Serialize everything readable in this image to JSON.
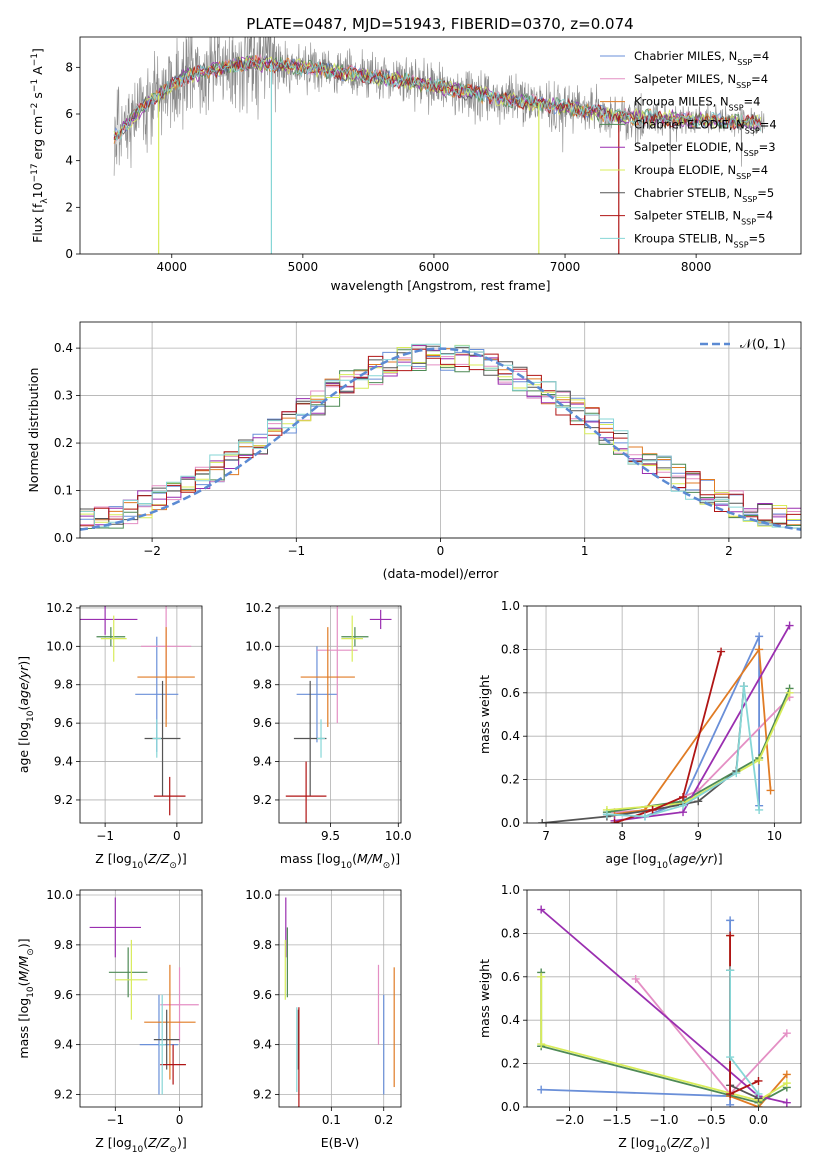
{
  "figure": {
    "title": "PLATE=0487, MJD=51943, FIBERID=0370, z=0.074"
  },
  "colors": {
    "Chabrier MILES": "#6a8fd8",
    "Salpeter MILES": "#e48fc4",
    "Kroupa MILES": "#e07b24",
    "Chabrier ELODIE": "#4e8a55",
    "Salpeter ELODIE": "#9a2fb0",
    "Kroupa ELODIE": "#d8ec5a",
    "Chabrier STELIB": "#555555",
    "Salpeter STELIB": "#b01515",
    "Kroupa STELIB": "#86d6d6",
    "data": "#888888",
    "normal": "#5b8ad3"
  },
  "legend": {
    "spectrum": [
      {
        "key": "Chabrier MILES",
        "label": "Chabrier MILES, N",
        "sub": "SSP",
        "tail": "=4"
      },
      {
        "key": "Salpeter MILES",
        "label": "Salpeter MILES, N",
        "sub": "SSP",
        "tail": "=4"
      },
      {
        "key": "Kroupa MILES",
        "label": "Kroupa MILES, N",
        "sub": "SSP",
        "tail": "=4"
      },
      {
        "key": "Chabrier ELODIE",
        "label": "Chabrier ELODIE, N",
        "sub": "SSP",
        "tail": "=4"
      },
      {
        "key": "Salpeter ELODIE",
        "label": "Salpeter ELODIE, N",
        "sub": "SSP",
        "tail": "=3"
      },
      {
        "key": "Kroupa ELODIE",
        "label": "Kroupa ELODIE, N",
        "sub": "SSP",
        "tail": "=4"
      },
      {
        "key": "Chabrier STELIB",
        "label": "Chabrier STELIB, N",
        "sub": "SSP",
        "tail": "=5"
      },
      {
        "key": "Salpeter STELIB",
        "label": "Salpeter STELIB, N",
        "sub": "SSP",
        "tail": "=4"
      },
      {
        "key": "Kroupa STELIB",
        "label": "Kroupa STELIB, N",
        "sub": "SSP",
        "tail": "=5"
      }
    ],
    "normal": "𝒩(0, 1)"
  },
  "chart_data": [
    {
      "id": "spectrum",
      "type": "line",
      "xlabel": "wavelength [Angstrom, rest frame]",
      "ylabel": "Flux [f",
      "ylabel_parts": [
        "Flux [f",
        "λ",
        "10",
        "−17",
        " erg cm",
        "−2",
        " s",
        "−1",
        " A",
        "−1",
        "]"
      ],
      "xlim": [
        3300,
        8800
      ],
      "ylim": [
        0,
        9.3
      ],
      "xticks": [
        4000,
        5000,
        6000,
        7000,
        8000
      ],
      "yticks": [
        0,
        2,
        4,
        6,
        8
      ],
      "continuum": [
        [
          3560,
          5.0
        ],
        [
          3650,
          5.5
        ],
        [
          3800,
          6.4
        ],
        [
          3950,
          7.0
        ],
        [
          4100,
          7.6
        ],
        [
          4300,
          7.9
        ],
        [
          4600,
          8.2
        ],
        [
          5000,
          8.0
        ],
        [
          5400,
          7.7
        ],
        [
          5800,
          7.4
        ],
        [
          6200,
          7.0
        ],
        [
          6600,
          6.6
        ],
        [
          7000,
          6.3
        ],
        [
          7400,
          5.9
        ],
        [
          7800,
          5.8
        ],
        [
          8200,
          5.7
        ],
        [
          8500,
          5.6
        ]
      ],
      "drops": [
        [
          3900,
          0
        ],
        [
          4760,
          0
        ],
        [
          6800,
          0
        ],
        [
          7410,
          0
        ]
      ]
    },
    {
      "id": "residuals",
      "type": "line",
      "xlabel": "(data-model)/error",
      "ylabel": "Normed distribution",
      "xlim": [
        -2.5,
        2.5
      ],
      "ylim": [
        0,
        0.455
      ],
      "xticks": [
        -2,
        -1,
        0,
        1,
        2
      ],
      "yticks": [
        0.0,
        0.1,
        0.2,
        0.3,
        0.4
      ]
    },
    {
      "id": "age_vs_Z",
      "type": "scatter",
      "xlabel": "Z [log",
      "ylabel": "age  [log",
      "xlim": [
        -1.35,
        0.35
      ],
      "ylim": [
        9.08,
        10.21
      ],
      "xticks": [
        -1,
        0
      ],
      "yticks": [
        9.2,
        9.4,
        9.6,
        9.8,
        10.0,
        10.2
      ],
      "points": [
        {
          "s": "Chabrier MILES",
          "x": -0.28,
          "y": 9.75,
          "xe": 0.3,
          "ye": 0.3
        },
        {
          "s": "Salpeter MILES",
          "x": -0.15,
          "y": 10.0,
          "xe": 0.35,
          "ye": 0.38
        },
        {
          "s": "Kroupa MILES",
          "x": -0.15,
          "y": 9.84,
          "xe": 0.4,
          "ye": 0.26
        },
        {
          "s": "Chabrier ELODIE",
          "x": -0.92,
          "y": 10.05,
          "xe": 0.2,
          "ye": 0.05
        },
        {
          "s": "Salpeter ELODIE",
          "x": -1.0,
          "y": 10.14,
          "xe": 0.45,
          "ye": 0.08
        },
        {
          "s": "Kroupa ELODIE",
          "x": -0.88,
          "y": 10.04,
          "xe": 0.18,
          "ye": 0.12
        },
        {
          "s": "Chabrier STELIB",
          "x": -0.2,
          "y": 9.52,
          "xe": 0.25,
          "ye": 0.3
        },
        {
          "s": "Salpeter STELIB",
          "x": -0.1,
          "y": 9.22,
          "xe": 0.22,
          "ye": 0.1
        },
        {
          "s": "Kroupa STELIB",
          "x": -0.28,
          "y": 9.52,
          "xe": 0.06,
          "ye": 0.1
        }
      ]
    },
    {
      "id": "age_vs_mass",
      "type": "scatter",
      "xlabel": "mass [log",
      "ylabel": "",
      "xlim": [
        9.12,
        10.02
      ],
      "ylim": [
        9.08,
        10.21
      ],
      "xticks": [
        9.5,
        10.0
      ],
      "yticks": [
        9.2,
        9.4,
        9.6,
        9.8,
        10.0,
        10.2
      ],
      "points": [
        {
          "s": "Chabrier MILES",
          "x": 9.4,
          "y": 9.75,
          "xe": 0.15,
          "ye": 0.25
        },
        {
          "s": "Salpeter MILES",
          "x": 9.55,
          "y": 9.98,
          "xe": 0.15,
          "ye": 0.38
        },
        {
          "s": "Kroupa MILES",
          "x": 9.48,
          "y": 9.84,
          "xe": 0.2,
          "ye": 0.26
        },
        {
          "s": "Chabrier ELODIE",
          "x": 9.68,
          "y": 10.05,
          "xe": 0.1,
          "ye": 0.05
        },
        {
          "s": "Salpeter ELODIE",
          "x": 9.87,
          "y": 10.14,
          "xe": 0.08,
          "ye": 0.05
        },
        {
          "s": "Kroupa ELODIE",
          "x": 9.66,
          "y": 10.04,
          "xe": 0.08,
          "ye": 0.12
        },
        {
          "s": "Chabrier STELIB",
          "x": 9.35,
          "y": 9.52,
          "xe": 0.12,
          "ye": 0.3
        },
        {
          "s": "Salpeter STELIB",
          "x": 9.32,
          "y": 9.22,
          "xe": 0.15,
          "ye": 0.18
        },
        {
          "s": "Kroupa STELIB",
          "x": 9.43,
          "y": 9.52,
          "xe": 0.03,
          "ye": 0.1
        }
      ]
    },
    {
      "id": "weight_vs_age",
      "type": "line",
      "xlabel": "age  [log",
      "ylabel": "mass weight",
      "xlim": [
        6.75,
        10.35
      ],
      "ylim": [
        0,
        1.0
      ],
      "xticks": [
        7,
        8,
        9,
        10
      ],
      "yticks": [
        0.0,
        0.2,
        0.4,
        0.6,
        0.8,
        1.0
      ],
      "series": [
        {
          "s": "Chabrier MILES",
          "points": [
            [
              7.8,
              0.04
            ],
            [
              8.3,
              0.03
            ],
            [
              8.8,
              0.1
            ],
            [
              9.8,
              0.86
            ],
            [
              9.8,
              0.08
            ]
          ]
        },
        {
          "s": "Salpeter MILES",
          "points": [
            [
              7.9,
              0.05
            ],
            [
              8.4,
              0.06
            ],
            [
              9.0,
              0.15
            ],
            [
              10.2,
              0.58
            ]
          ]
        },
        {
          "s": "Kroupa MILES",
          "points": [
            [
              7.9,
              0.04
            ],
            [
              8.3,
              0.06
            ],
            [
              9.8,
              0.8
            ],
            [
              9.95,
              0.15
            ]
          ]
        },
        {
          "s": "Chabrier ELODIE",
          "points": [
            [
              7.8,
              0.05
            ],
            [
              8.8,
              0.1
            ],
            [
              9.8,
              0.3
            ],
            [
              10.2,
              0.62
            ]
          ]
        },
        {
          "s": "Salpeter ELODIE",
          "points": [
            [
              7.9,
              0.01
            ],
            [
              8.8,
              0.05
            ],
            [
              10.2,
              0.91
            ]
          ]
        },
        {
          "s": "Kroupa ELODIE",
          "points": [
            [
              7.8,
              0.06
            ],
            [
              8.8,
              0.09
            ],
            [
              9.8,
              0.29
            ],
            [
              10.2,
              0.6
            ]
          ]
        },
        {
          "s": "Chabrier STELIB",
          "points": [
            [
              6.95,
              0.0
            ],
            [
              7.8,
              0.03
            ],
            [
              8.4,
              0.06
            ],
            [
              9.0,
              0.1
            ],
            [
              9.5,
              0.24
            ],
            [
              9.6,
              0.63
            ]
          ]
        },
        {
          "s": "Salpeter STELIB",
          "points": [
            [
              7.9,
              0.0
            ],
            [
              8.4,
              0.06
            ],
            [
              8.8,
              0.12
            ],
            [
              9.3,
              0.79
            ]
          ]
        },
        {
          "s": "Kroupa STELIB",
          "points": [
            [
              7.8,
              0.04
            ],
            [
              8.3,
              0.03
            ],
            [
              8.8,
              0.08
            ],
            [
              9.5,
              0.23
            ],
            [
              9.6,
              0.63
            ],
            [
              9.8,
              0.06
            ]
          ]
        }
      ]
    },
    {
      "id": "mass_vs_Z",
      "type": "scatter",
      "xlabel": "Z [log",
      "ylabel": "mass [log",
      "xlim": [
        -1.55,
        0.35
      ],
      "ylim": [
        9.15,
        10.02
      ],
      "xticks": [
        -1,
        0
      ],
      "yticks": [
        9.2,
        9.4,
        9.6,
        9.8,
        10.0
      ],
      "points": [
        {
          "s": "Chabrier MILES",
          "x": -0.32,
          "y": 9.4,
          "xe": 0.3,
          "ye": 0.2
        },
        {
          "s": "Salpeter MILES",
          "x": 0.0,
          "y": 9.56,
          "xe": 0.3,
          "ye": 0.15
        },
        {
          "s": "Kroupa MILES",
          "x": -0.15,
          "y": 9.49,
          "xe": 0.4,
          "ye": 0.23
        },
        {
          "s": "Chabrier ELODIE",
          "x": -0.8,
          "y": 9.69,
          "xe": 0.3,
          "ye": 0.1
        },
        {
          "s": "Salpeter ELODIE",
          "x": -1.0,
          "y": 9.87,
          "xe": 0.4,
          "ye": 0.12
        },
        {
          "s": "Kroupa ELODIE",
          "x": -0.75,
          "y": 9.66,
          "xe": 0.25,
          "ye": 0.16
        },
        {
          "s": "Chabrier STELIB",
          "x": -0.2,
          "y": 9.42,
          "xe": 0.2,
          "ye": 0.12
        },
        {
          "s": "Salpeter STELIB",
          "x": -0.1,
          "y": 9.32,
          "xe": 0.2,
          "ye": 0.08
        },
        {
          "s": "Kroupa STELIB",
          "x": -0.27,
          "y": 9.4,
          "xe": 0.05,
          "ye": 0.2
        }
      ]
    },
    {
      "id": "mass_vs_ebv",
      "type": "scatter",
      "xlabel": "E(B-V)",
      "ylabel": "",
      "xlim": [
        0.0,
        0.233
      ],
      "ylim": [
        9.15,
        10.02
      ],
      "xticks": [
        0.1,
        0.2
      ],
      "yticks": [
        9.2,
        9.4,
        9.6,
        9.8,
        10.0
      ],
      "points": [
        {
          "s": "Chabrier MILES",
          "x": 0.2,
          "y": 9.4,
          "xe": 0.0,
          "ye": 0.2
        },
        {
          "s": "Salpeter MILES",
          "x": 0.19,
          "y": 9.56,
          "xe": 0.0,
          "ye": 0.16
        },
        {
          "s": "Kroupa MILES",
          "x": 0.22,
          "y": 9.47,
          "xe": 0.0,
          "ye": 0.24
        },
        {
          "s": "Chabrier ELODIE",
          "x": 0.016,
          "y": 9.73,
          "xe": 0.0,
          "ye": 0.14
        },
        {
          "s": "Salpeter ELODIE",
          "x": 0.013,
          "y": 9.87,
          "xe": 0.0,
          "ye": 0.12
        },
        {
          "s": "Kroupa ELODIE",
          "x": 0.012,
          "y": 9.7,
          "xe": 0.0,
          "ye": 0.12
        },
        {
          "s": "Chabrier STELIB",
          "x": 0.037,
          "y": 9.42,
          "xe": 0.0,
          "ye": 0.12
        },
        {
          "s": "Salpeter STELIB",
          "x": 0.038,
          "y": 9.35,
          "xe": 0.0,
          "ye": 0.2
        },
        {
          "s": "Kroupa STELIB",
          "x": 0.034,
          "y": 9.38,
          "xe": 0.0,
          "ye": 0.17
        }
      ]
    },
    {
      "id": "weight_vs_Z",
      "type": "line",
      "xlabel": "Z [log",
      "ylabel": "mass weight",
      "xlim": [
        -2.45,
        0.45
      ],
      "ylim": [
        0,
        1.0
      ],
      "xticks": [
        -2.0,
        -1.5,
        -1.0,
        -0.5,
        0.0
      ],
      "yticks": [
        0.0,
        0.2,
        0.4,
        0.6,
        0.8,
        1.0
      ],
      "series": [
        {
          "s": "Chabrier MILES",
          "points": [
            [
              -2.3,
              0.08
            ],
            [
              -0.3,
              0.05
            ],
            [
              -0.3,
              0.86
            ],
            [
              -0.3,
              0.01
            ]
          ]
        },
        {
          "s": "Salpeter MILES",
          "points": [
            [
              -1.3,
              0.59
            ],
            [
              -0.3,
              0.06
            ],
            [
              0.3,
              0.34
            ]
          ]
        },
        {
          "s": "Kroupa MILES",
          "points": [
            [
              -0.3,
              0.79
            ],
            [
              -0.3,
              0.05
            ],
            [
              0.0,
              0.0
            ],
            [
              0.3,
              0.15
            ]
          ]
        },
        {
          "s": "Chabrier ELODIE",
          "points": [
            [
              -2.3,
              0.62
            ],
            [
              -2.3,
              0.28
            ],
            [
              0.0,
              0.02
            ],
            [
              0.3,
              0.09
            ]
          ]
        },
        {
          "s": "Salpeter ELODIE",
          "points": [
            [
              -2.3,
              0.91
            ],
            [
              0.0,
              0.05
            ],
            [
              0.3,
              0.02
            ]
          ]
        },
        {
          "s": "Kroupa ELODIE",
          "points": [
            [
              -2.3,
              0.6
            ],
            [
              -2.3,
              0.29
            ],
            [
              0.0,
              0.03
            ],
            [
              0.3,
              0.11
            ]
          ]
        },
        {
          "s": "Chabrier STELIB",
          "points": [
            [
              -0.3,
              0.63
            ],
            [
              -0.3,
              0.1
            ],
            [
              0.0,
              0.04
            ]
          ]
        },
        {
          "s": "Salpeter STELIB",
          "points": [
            [
              -0.3,
              0.79
            ],
            [
              -0.3,
              0.06
            ],
            [
              0.0,
              0.12
            ]
          ]
        },
        {
          "s": "Kroupa STELIB",
          "points": [
            [
              -0.3,
              0.63
            ],
            [
              -0.3,
              0.23
            ],
            [
              0.0,
              0.06
            ]
          ]
        }
      ]
    }
  ]
}
